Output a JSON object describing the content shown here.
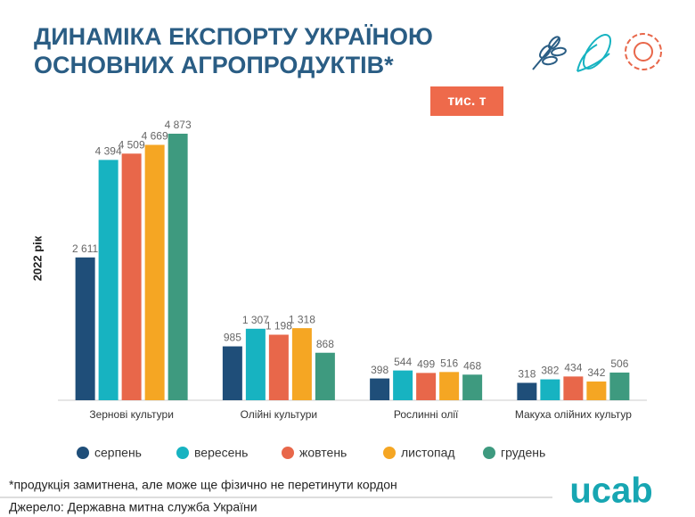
{
  "chart_data": {
    "type": "bar",
    "title": [
      "ДИНАМІКА ЕКСПОРТУ УКРАЇНОЮ",
      "ОСНОВНИХ АГРОПРОДУКТІВ*"
    ],
    "unit": "тис. т",
    "y_label": "2022 рік",
    "categories": [
      "Зернові культури",
      "Олійні культури",
      "Рослинні олії",
      "Макуха олійних культур"
    ],
    "series": [
      {
        "name": "серпень",
        "color": "#1f4e79",
        "values": [
          2611,
          985,
          398,
          318
        ],
        "value_labels": [
          "2 611",
          "985",
          "398",
          "318"
        ]
      },
      {
        "name": "вересень",
        "color": "#17b3c1",
        "values": [
          4394,
          1307,
          544,
          382
        ],
        "value_labels": [
          "4 394",
          "1 307",
          "544",
          "382"
        ]
      },
      {
        "name": "жовтень",
        "color": "#e8674a",
        "values": [
          4509,
          1198,
          499,
          434
        ],
        "value_labels": [
          "4 509",
          "1 198",
          "499",
          "434"
        ]
      },
      {
        "name": "листопад",
        "color": "#f5a623",
        "values": [
          4669,
          1318,
          516,
          342
        ],
        "value_labels": [
          "4 669",
          "1 318",
          "516",
          "342"
        ]
      },
      {
        "name": "грудень",
        "color": "#3e9a7f",
        "values": [
          4873,
          868,
          468,
          506
        ],
        "value_labels": [
          "4 873",
          "868",
          "468",
          "506"
        ]
      }
    ],
    "legend": "bottom",
    "footnote": "*продукція замитнена, але може ще фізично не перетинути кордон",
    "source": "Джерело: Державна митна служба України",
    "logo": "ucab"
  }
}
